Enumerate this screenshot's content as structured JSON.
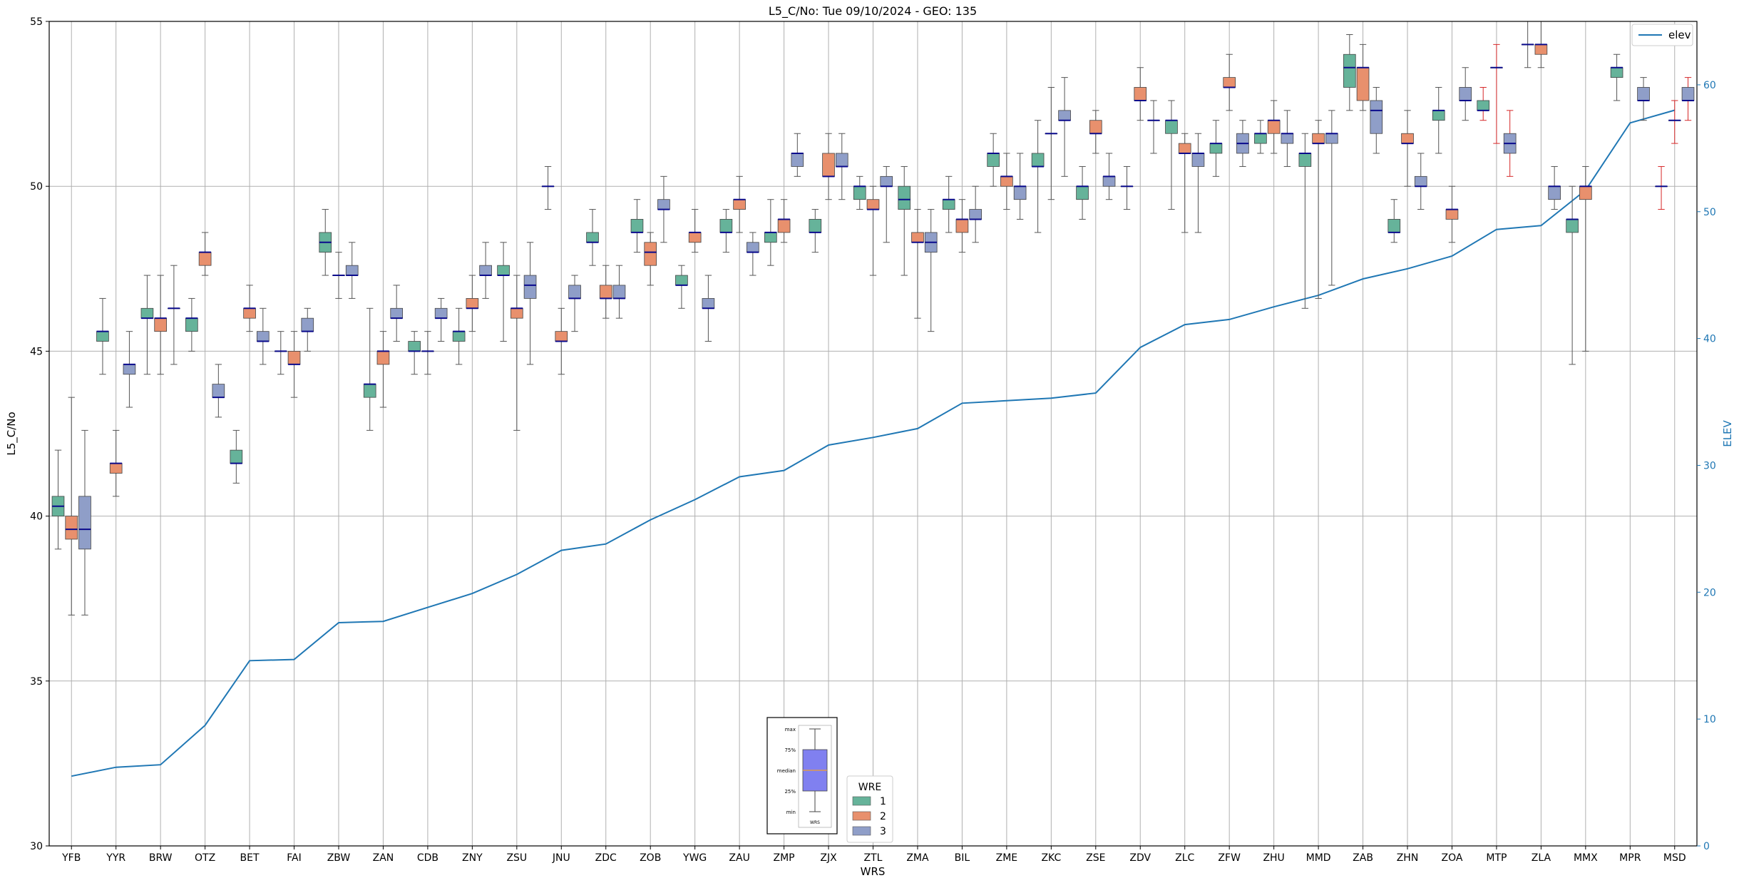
{
  "chart_data": {
    "type": "box",
    "title": "L5_C/No: Tue 09/10/2024 - GEO: 135",
    "xlabel": "WRS",
    "ylabel": "L5_C/No",
    "y2label": "ELEV",
    "ylim": [
      30,
      55
    ],
    "y2lim": [
      0,
      65
    ],
    "yticks": [
      30,
      35,
      40,
      45,
      50,
      55
    ],
    "y2ticks": [
      0,
      10,
      20,
      30,
      40,
      50,
      60
    ],
    "grid": true,
    "categories": [
      "YFB",
      "YYR",
      "BRW",
      "OTZ",
      "BET",
      "FAI",
      "ZBW",
      "ZAN",
      "CDB",
      "ZNY",
      "ZSU",
      "JNU",
      "ZDC",
      "ZOB",
      "YWG",
      "ZAU",
      "ZMP",
      "ZJX",
      "ZTL",
      "ZMA",
      "BIL",
      "ZME",
      "ZKC",
      "ZSE",
      "ZDV",
      "ZLC",
      "ZFW",
      "ZHU",
      "MMD",
      "ZAB",
      "ZHN",
      "ZOA",
      "MTP",
      "ZLA",
      "MMX",
      "MPR",
      "MSD"
    ],
    "wre_colors": {
      "1": "#66b39a",
      "2": "#e8906d",
      "3": "#8f9ec8"
    },
    "series_elev": {
      "name": "elev",
      "color": "#1f77b4",
      "values": [
        5.5,
        6.2,
        6.4,
        9.5,
        14.6,
        14.7,
        17.6,
        17.7,
        18.8,
        19.9,
        21.4,
        23.3,
        23.8,
        25.7,
        27.3,
        29.1,
        29.6,
        31.6,
        32.2,
        32.9,
        34.9,
        35.1,
        35.3,
        35.7,
        39.3,
        41.1,
        41.5,
        42.5,
        43.4,
        44.7,
        45.5,
        46.5,
        48.6,
        48.9,
        51.7,
        57.0,
        58.0
      ]
    },
    "boxes": [
      {
        "cat": "YFB",
        "wre": 1,
        "min": 39.0,
        "q1": 40.0,
        "med": 40.3,
        "q3": 40.6,
        "max": 42.0
      },
      {
        "cat": "YFB",
        "wre": 2,
        "min": 37.0,
        "q1": 39.3,
        "med": 39.6,
        "q3": 40.0,
        "max": 43.6
      },
      {
        "cat": "YFB",
        "wre": 3,
        "min": 37.0,
        "q1": 39.0,
        "med": 39.6,
        "q3": 40.6,
        "max": 42.6
      },
      {
        "cat": "YYR",
        "wre": 1,
        "min": 44.3,
        "q1": 45.3,
        "med": 45.6,
        "q3": 45.6,
        "max": 46.6
      },
      {
        "cat": "YYR",
        "wre": 2,
        "min": 40.6,
        "q1": 41.3,
        "med": 41.6,
        "q3": 41.6,
        "max": 42.6
      },
      {
        "cat": "YYR",
        "wre": 3,
        "min": 43.3,
        "q1": 44.3,
        "med": 44.6,
        "q3": 44.6,
        "max": 45.6
      },
      {
        "cat": "BRW",
        "wre": 1,
        "min": 44.3,
        "q1": 46.0,
        "med": 46.0,
        "q3": 46.3,
        "max": 47.3
      },
      {
        "cat": "BRW",
        "wre": 2,
        "min": 44.3,
        "q1": 45.6,
        "med": 46.0,
        "q3": 46.0,
        "max": 47.3
      },
      {
        "cat": "BRW",
        "wre": 3,
        "min": 44.6,
        "q1": 46.3,
        "med": 46.3,
        "q3": 46.3,
        "max": 47.6
      },
      {
        "cat": "OTZ",
        "wre": 1,
        "min": 45.0,
        "q1": 45.6,
        "med": 46.0,
        "q3": 46.0,
        "max": 46.6
      },
      {
        "cat": "OTZ",
        "wre": 2,
        "min": 47.3,
        "q1": 47.6,
        "med": 48.0,
        "q3": 48.0,
        "max": 48.6
      },
      {
        "cat": "OTZ",
        "wre": 3,
        "min": 43.0,
        "q1": 43.6,
        "med": 43.6,
        "q3": 44.0,
        "max": 44.6
      },
      {
        "cat": "BET",
        "wre": 1,
        "min": 41.0,
        "q1": 41.6,
        "med": 41.6,
        "q3": 42.0,
        "max": 42.6
      },
      {
        "cat": "BET",
        "wre": 2,
        "min": 45.6,
        "q1": 46.0,
        "med": 46.3,
        "q3": 46.3,
        "max": 47.0
      },
      {
        "cat": "BET",
        "wre": 3,
        "min": 44.6,
        "q1": 45.3,
        "med": 45.3,
        "q3": 45.6,
        "max": 46.3
      },
      {
        "cat": "FAI",
        "wre": 1,
        "min": 44.3,
        "q1": 45.0,
        "med": 45.0,
        "q3": 45.0,
        "max": 45.6
      },
      {
        "cat": "FAI",
        "wre": 2,
        "min": 43.6,
        "q1": 44.6,
        "med": 44.6,
        "q3": 45.0,
        "max": 45.6
      },
      {
        "cat": "FAI",
        "wre": 3,
        "min": 45.0,
        "q1": 45.6,
        "med": 45.6,
        "q3": 46.0,
        "max": 46.3
      },
      {
        "cat": "ZBW",
        "wre": 1,
        "min": 47.3,
        "q1": 48.0,
        "med": 48.3,
        "q3": 48.6,
        "max": 49.3
      },
      {
        "cat": "ZBW",
        "wre": 2,
        "min": 46.6,
        "q1": 47.3,
        "med": 47.3,
        "q3": 47.3,
        "max": 48.0
      },
      {
        "cat": "ZBW",
        "wre": 3,
        "min": 46.6,
        "q1": 47.3,
        "med": 47.3,
        "q3": 47.6,
        "max": 48.3
      },
      {
        "cat": "ZAN",
        "wre": 1,
        "min": 42.6,
        "q1": 43.6,
        "med": 44.0,
        "q3": 44.0,
        "max": 46.3
      },
      {
        "cat": "ZAN",
        "wre": 2,
        "min": 43.3,
        "q1": 44.6,
        "med": 45.0,
        "q3": 45.0,
        "max": 45.6
      },
      {
        "cat": "ZAN",
        "wre": 3,
        "min": 45.3,
        "q1": 46.0,
        "med": 46.0,
        "q3": 46.3,
        "max": 47.0
      },
      {
        "cat": "CDB",
        "wre": 1,
        "min": 44.3,
        "q1": 45.0,
        "med": 45.0,
        "q3": 45.3,
        "max": 45.6
      },
      {
        "cat": "CDB",
        "wre": 2,
        "min": 44.3,
        "q1": 45.0,
        "med": 45.0,
        "q3": 45.0,
        "max": 45.6
      },
      {
        "cat": "CDB",
        "wre": 3,
        "min": 45.3,
        "q1": 46.0,
        "med": 46.0,
        "q3": 46.3,
        "max": 46.6
      },
      {
        "cat": "ZNY",
        "wre": 1,
        "min": 44.6,
        "q1": 45.3,
        "med": 45.6,
        "q3": 45.6,
        "max": 46.3
      },
      {
        "cat": "ZNY",
        "wre": 2,
        "min": 45.6,
        "q1": 46.3,
        "med": 46.3,
        "q3": 46.6,
        "max": 47.3
      },
      {
        "cat": "ZNY",
        "wre": 3,
        "min": 46.6,
        "q1": 47.3,
        "med": 47.3,
        "q3": 47.6,
        "max": 48.3
      },
      {
        "cat": "ZSU",
        "wre": 1,
        "min": 45.3,
        "q1": 47.3,
        "med": 47.3,
        "q3": 47.6,
        "max": 48.3
      },
      {
        "cat": "ZSU",
        "wre": 2,
        "min": 42.6,
        "q1": 46.0,
        "med": 46.3,
        "q3": 46.3,
        "max": 47.3
      },
      {
        "cat": "ZSU",
        "wre": 3,
        "min": 44.6,
        "q1": 46.6,
        "med": 47.0,
        "q3": 47.3,
        "max": 48.3
      },
      {
        "cat": "JNU",
        "wre": 1,
        "min": 49.3,
        "q1": 50.0,
        "med": 50.0,
        "q3": 50.0,
        "max": 50.6
      },
      {
        "cat": "JNU",
        "wre": 2,
        "min": 44.3,
        "q1": 45.3,
        "med": 45.3,
        "q3": 45.6,
        "max": 46.3
      },
      {
        "cat": "JNU",
        "wre": 3,
        "min": 45.6,
        "q1": 46.6,
        "med": 46.6,
        "q3": 47.0,
        "max": 47.3
      },
      {
        "cat": "ZDC",
        "wre": 1,
        "min": 47.6,
        "q1": 48.3,
        "med": 48.3,
        "q3": 48.6,
        "max": 49.3
      },
      {
        "cat": "ZDC",
        "wre": 2,
        "min": 46.0,
        "q1": 46.6,
        "med": 46.6,
        "q3": 47.0,
        "max": 47.6
      },
      {
        "cat": "ZDC",
        "wre": 3,
        "min": 46.0,
        "q1": 46.6,
        "med": 46.6,
        "q3": 47.0,
        "max": 47.6
      },
      {
        "cat": "ZOB",
        "wre": 1,
        "min": 48.0,
        "q1": 48.6,
        "med": 48.6,
        "q3": 49.0,
        "max": 49.6
      },
      {
        "cat": "ZOB",
        "wre": 2,
        "min": 47.0,
        "q1": 47.6,
        "med": 48.0,
        "q3": 48.3,
        "max": 48.6
      },
      {
        "cat": "ZOB",
        "wre": 3,
        "min": 48.3,
        "q1": 49.3,
        "med": 49.3,
        "q3": 49.6,
        "max": 50.3
      },
      {
        "cat": "YWG",
        "wre": 1,
        "min": 46.3,
        "q1": 47.0,
        "med": 47.0,
        "q3": 47.3,
        "max": 47.6
      },
      {
        "cat": "YWG",
        "wre": 2,
        "min": 48.0,
        "q1": 48.3,
        "med": 48.6,
        "q3": 48.6,
        "max": 49.3
      },
      {
        "cat": "YWG",
        "wre": 3,
        "min": 45.3,
        "q1": 46.3,
        "med": 46.3,
        "q3": 46.6,
        "max": 47.3
      },
      {
        "cat": "ZAU",
        "wre": 1,
        "min": 48.0,
        "q1": 48.6,
        "med": 48.6,
        "q3": 49.0,
        "max": 49.3
      },
      {
        "cat": "ZAU",
        "wre": 2,
        "min": 48.6,
        "q1": 49.3,
        "med": 49.6,
        "q3": 49.6,
        "max": 50.3
      },
      {
        "cat": "ZAU",
        "wre": 3,
        "min": 47.3,
        "q1": 48.0,
        "med": 48.0,
        "q3": 48.3,
        "max": 48.6
      },
      {
        "cat": "ZMP",
        "wre": 1,
        "min": 47.6,
        "q1": 48.3,
        "med": 48.6,
        "q3": 48.6,
        "max": 49.6
      },
      {
        "cat": "ZMP",
        "wre": 2,
        "min": 48.3,
        "q1": 48.6,
        "med": 49.0,
        "q3": 49.0,
        "max": 49.6
      },
      {
        "cat": "ZMP",
        "wre": 3,
        "min": 50.3,
        "q1": 50.6,
        "med": 51.0,
        "q3": 51.0,
        "max": 51.6
      },
      {
        "cat": "ZJX",
        "wre": 1,
        "min": 48.0,
        "q1": 48.6,
        "med": 48.6,
        "q3": 49.0,
        "max": 49.3
      },
      {
        "cat": "ZJX",
        "wre": 2,
        "min": 49.6,
        "q1": 50.3,
        "med": 50.3,
        "q3": 51.0,
        "max": 51.6
      },
      {
        "cat": "ZJX",
        "wre": 3,
        "min": 49.6,
        "q1": 50.6,
        "med": 50.6,
        "q3": 51.0,
        "max": 51.6
      },
      {
        "cat": "ZTL",
        "wre": 1,
        "min": 49.3,
        "q1": 49.6,
        "med": 50.0,
        "q3": 50.0,
        "max": 50.3
      },
      {
        "cat": "ZTL",
        "wre": 2,
        "min": 47.3,
        "q1": 49.3,
        "med": 49.3,
        "q3": 49.6,
        "max": 50.0
      },
      {
        "cat": "ZTL",
        "wre": 3,
        "min": 48.3,
        "q1": 50.0,
        "med": 50.0,
        "q3": 50.3,
        "max": 50.6
      },
      {
        "cat": "ZMA",
        "wre": 1,
        "min": 47.3,
        "q1": 49.3,
        "med": 49.6,
        "q3": 50.0,
        "max": 50.6
      },
      {
        "cat": "ZMA",
        "wre": 2,
        "min": 46.0,
        "q1": 48.3,
        "med": 48.3,
        "q3": 48.6,
        "max": 49.3
      },
      {
        "cat": "ZMA",
        "wre": 3,
        "min": 45.6,
        "q1": 48.0,
        "med": 48.3,
        "q3": 48.6,
        "max": 49.3
      },
      {
        "cat": "BIL",
        "wre": 1,
        "min": 48.6,
        "q1": 49.3,
        "med": 49.6,
        "q3": 49.6,
        "max": 50.3
      },
      {
        "cat": "BIL",
        "wre": 2,
        "min": 48.0,
        "q1": 48.6,
        "med": 49.0,
        "q3": 49.0,
        "max": 49.6
      },
      {
        "cat": "BIL",
        "wre": 3,
        "min": 48.3,
        "q1": 49.0,
        "med": 49.0,
        "q3": 49.3,
        "max": 50.0
      },
      {
        "cat": "ZME",
        "wre": 1,
        "min": 50.0,
        "q1": 50.6,
        "med": 51.0,
        "q3": 51.0,
        "max": 51.6
      },
      {
        "cat": "ZME",
        "wre": 2,
        "min": 49.3,
        "q1": 50.0,
        "med": 50.3,
        "q3": 50.3,
        "max": 51.0
      },
      {
        "cat": "ZME",
        "wre": 3,
        "min": 49.0,
        "q1": 49.6,
        "med": 50.0,
        "q3": 50.0,
        "max": 51.0
      },
      {
        "cat": "ZKC",
        "wre": 1,
        "min": 48.6,
        "q1": 50.6,
        "med": 50.6,
        "q3": 51.0,
        "max": 52.0
      },
      {
        "cat": "ZKC",
        "wre": 2,
        "min": 49.6,
        "q1": 51.6,
        "med": 51.6,
        "q3": 51.6,
        "max": 53.0
      },
      {
        "cat": "ZKC",
        "wre": 3,
        "min": 50.3,
        "q1": 52.0,
        "med": 52.0,
        "q3": 52.3,
        "max": 53.3
      },
      {
        "cat": "ZSE",
        "wre": 1,
        "min": 49.0,
        "q1": 49.6,
        "med": 50.0,
        "q3": 50.0,
        "max": 50.6
      },
      {
        "cat": "ZSE",
        "wre": 2,
        "min": 51.0,
        "q1": 51.6,
        "med": 51.6,
        "q3": 52.0,
        "max": 52.3
      },
      {
        "cat": "ZSE",
        "wre": 3,
        "min": 49.6,
        "q1": 50.0,
        "med": 50.3,
        "q3": 50.3,
        "max": 51.0
      },
      {
        "cat": "ZDV",
        "wre": 1,
        "min": 49.3,
        "q1": 50.0,
        "med": 50.0,
        "q3": 50.0,
        "max": 50.6
      },
      {
        "cat": "ZDV",
        "wre": 2,
        "min": 52.0,
        "q1": 52.6,
        "med": 52.6,
        "q3": 53.0,
        "max": 53.6
      },
      {
        "cat": "ZDV",
        "wre": 3,
        "min": 51.0,
        "q1": 52.0,
        "med": 52.0,
        "q3": 52.0,
        "max": 52.6
      },
      {
        "cat": "ZLC",
        "wre": 1,
        "min": 49.3,
        "q1": 51.6,
        "med": 52.0,
        "q3": 52.0,
        "max": 52.6
      },
      {
        "cat": "ZLC",
        "wre": 2,
        "min": 48.6,
        "q1": 51.0,
        "med": 51.0,
        "q3": 51.3,
        "max": 51.6
      },
      {
        "cat": "ZLC",
        "wre": 3,
        "min": 48.6,
        "q1": 50.6,
        "med": 51.0,
        "q3": 51.0,
        "max": 51.6
      },
      {
        "cat": "ZFW",
        "wre": 1,
        "min": 50.3,
        "q1": 51.0,
        "med": 51.3,
        "q3": 51.3,
        "max": 52.0
      },
      {
        "cat": "ZFW",
        "wre": 2,
        "min": 52.3,
        "q1": 53.0,
        "med": 53.0,
        "q3": 53.3,
        "max": 54.0
      },
      {
        "cat": "ZFW",
        "wre": 3,
        "min": 50.6,
        "q1": 51.0,
        "med": 51.3,
        "q3": 51.6,
        "max": 52.0
      },
      {
        "cat": "ZHU",
        "wre": 1,
        "min": 51.0,
        "q1": 51.3,
        "med": 51.6,
        "q3": 51.6,
        "max": 52.0
      },
      {
        "cat": "ZHU",
        "wre": 2,
        "min": 51.0,
        "q1": 51.6,
        "med": 52.0,
        "q3": 52.0,
        "max": 52.6
      },
      {
        "cat": "ZHU",
        "wre": 3,
        "min": 50.6,
        "q1": 51.3,
        "med": 51.6,
        "q3": 51.6,
        "max": 52.3
      },
      {
        "cat": "MMD",
        "wre": 1,
        "min": 46.3,
        "q1": 50.6,
        "med": 51.0,
        "q3": 51.0,
        "max": 51.6
      },
      {
        "cat": "MMD",
        "wre": 2,
        "min": 46.6,
        "q1": 51.3,
        "med": 51.3,
        "q3": 51.6,
        "max": 52.0
      },
      {
        "cat": "MMD",
        "wre": 3,
        "min": 47.0,
        "q1": 51.3,
        "med": 51.6,
        "q3": 51.6,
        "max": 52.3
      },
      {
        "cat": "ZAB",
        "wre": 1,
        "min": 52.3,
        "q1": 53.0,
        "med": 53.6,
        "q3": 54.0,
        "max": 54.6
      },
      {
        "cat": "ZAB",
        "wre": 2,
        "min": 52.3,
        "q1": 52.6,
        "med": 53.6,
        "q3": 53.6,
        "max": 54.3
      },
      {
        "cat": "ZAB",
        "wre": 3,
        "min": 51.0,
        "q1": 51.6,
        "med": 52.3,
        "q3": 52.6,
        "max": 53.0
      },
      {
        "cat": "ZHN",
        "wre": 1,
        "min": 48.3,
        "q1": 48.6,
        "med": 48.6,
        "q3": 49.0,
        "max": 49.6
      },
      {
        "cat": "ZHN",
        "wre": 2,
        "min": 50.0,
        "q1": 51.3,
        "med": 51.3,
        "q3": 51.6,
        "max": 52.3
      },
      {
        "cat": "ZHN",
        "wre": 3,
        "min": 49.3,
        "q1": 50.0,
        "med": 50.0,
        "q3": 50.3,
        "max": 51.0
      },
      {
        "cat": "ZOA",
        "wre": 1,
        "min": 51.0,
        "q1": 52.0,
        "med": 52.3,
        "q3": 52.3,
        "max": 53.0
      },
      {
        "cat": "ZOA",
        "wre": 2,
        "min": 48.3,
        "q1": 49.0,
        "med": 49.3,
        "q3": 49.3,
        "max": 50.0
      },
      {
        "cat": "ZOA",
        "wre": 3,
        "min": 52.0,
        "q1": 52.6,
        "med": 52.6,
        "q3": 53.0,
        "max": 53.6
      },
      {
        "cat": "MTP",
        "wre": 1,
        "min": 52.0,
        "q1": 52.3,
        "med": 52.3,
        "q3": 52.6,
        "max": 53.0
      },
      {
        "cat": "MTP",
        "wre": 2,
        "min": 51.3,
        "q1": 53.6,
        "med": 53.6,
        "q3": 53.6,
        "max": 54.3
      },
      {
        "cat": "MTP",
        "wre": 3,
        "min": 50.3,
        "q1": 51.0,
        "med": 51.3,
        "q3": 51.6,
        "max": 52.3
      },
      {
        "cat": "ZLA",
        "wre": 1,
        "min": 53.6,
        "q1": 54.3,
        "med": 54.3,
        "q3": 54.3,
        "max": 55.0
      },
      {
        "cat": "ZLA",
        "wre": 2,
        "min": 53.6,
        "q1": 54.0,
        "med": 54.3,
        "q3": 54.3,
        "max": 55.0
      },
      {
        "cat": "ZLA",
        "wre": 3,
        "min": 49.3,
        "q1": 49.6,
        "med": 50.0,
        "q3": 50.0,
        "max": 50.6
      },
      {
        "cat": "MMX",
        "wre": 1,
        "min": 44.6,
        "q1": 48.6,
        "med": 49.0,
        "q3": 49.0,
        "max": 50.0
      },
      {
        "cat": "MMX",
        "wre": 2,
        "min": 45.0,
        "q1": 49.6,
        "med": 50.0,
        "q3": 50.0,
        "max": 50.6
      },
      {
        "cat": "MPR",
        "wre": 1,
        "min": 52.6,
        "q1": 53.3,
        "med": 53.6,
        "q3": 53.6,
        "max": 54.0
      },
      {
        "cat": "MPR",
        "wre": 3,
        "min": 52.0,
        "q1": 52.6,
        "med": 52.6,
        "q3": 53.0,
        "max": 53.3
      },
      {
        "cat": "MSD",
        "wre": 1,
        "min": 49.3,
        "q1": 50.0,
        "med": 50.0,
        "q3": 50.0,
        "max": 50.6
      },
      {
        "cat": "MSD",
        "wre": 2,
        "min": 51.3,
        "q1": 52.0,
        "med": 52.0,
        "q3": 52.0,
        "max": 52.6
      },
      {
        "cat": "MSD",
        "wre": 3,
        "min": 52.0,
        "q1": 52.6,
        "med": 52.6,
        "q3": 53.0,
        "max": 53.3
      }
    ],
    "red_whisker_categories": [
      "MTP",
      "MSD"
    ],
    "legend_elev": {
      "label": "elev",
      "location": "upper right"
    },
    "legend_wre": {
      "title": "WRE",
      "items": [
        "1",
        "2",
        "3"
      ],
      "location": "lower center"
    },
    "key_inset": {
      "labels": [
        "max",
        "75%",
        "median",
        "25%",
        "min"
      ],
      "xlabel": "WRS",
      "fill": "#8080f0"
    }
  }
}
